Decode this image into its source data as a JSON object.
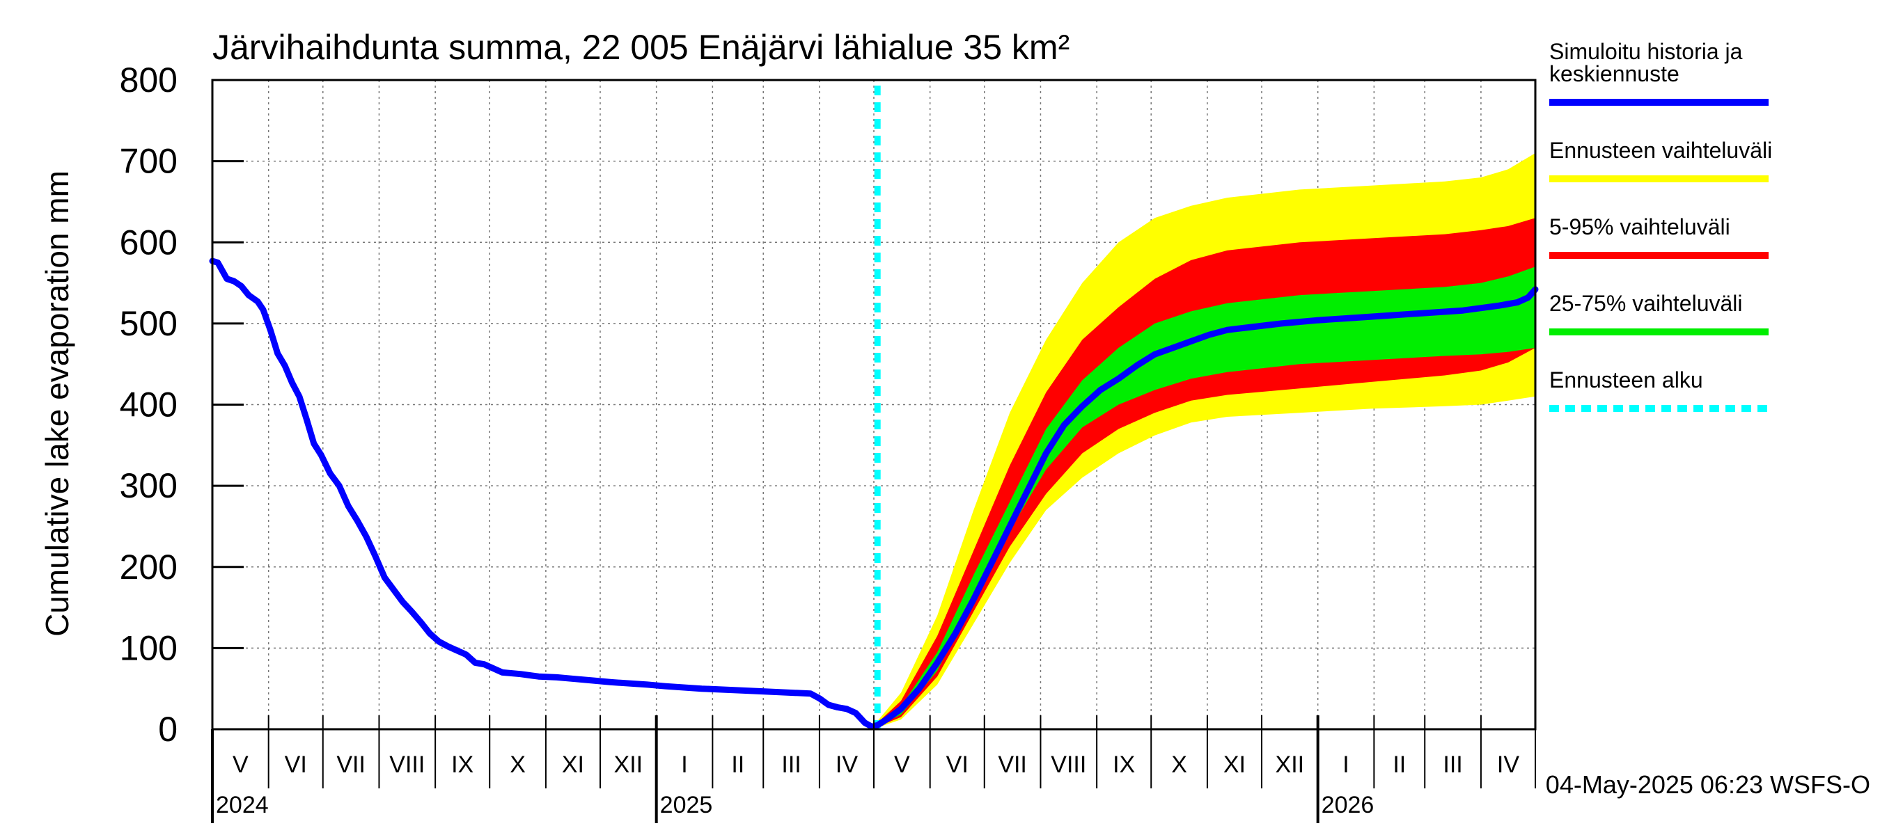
{
  "chart_data": {
    "type": "area",
    "title": "Järvihaihdunta summa, 22 005 Enäjärvi lähialue 35 km²",
    "ylabel": "Cumulative lake evaporation   mm",
    "xlabel": "",
    "ylim": [
      0,
      800
    ],
    "y_ticks": [
      0,
      100,
      200,
      300,
      400,
      500,
      600,
      700,
      800
    ],
    "x_range_days": [
      0,
      730
    ],
    "forecast_start_day": 367,
    "months": [
      {
        "label": "V",
        "start": 0
      },
      {
        "label": "VI",
        "start": 31
      },
      {
        "label": "VII",
        "start": 61
      },
      {
        "label": "VIII",
        "start": 92
      },
      {
        "label": "IX",
        "start": 123
      },
      {
        "label": "X",
        "start": 153
      },
      {
        "label": "XI",
        "start": 184
      },
      {
        "label": "XII",
        "start": 214
      },
      {
        "label": "I",
        "start": 245
      },
      {
        "label": "II",
        "start": 276
      },
      {
        "label": "III",
        "start": 304
      },
      {
        "label": "IV",
        "start": 335
      },
      {
        "label": "V",
        "start": 365
      },
      {
        "label": "VI",
        "start": 396
      },
      {
        "label": "VII",
        "start": 426
      },
      {
        "label": "VIII",
        "start": 457
      },
      {
        "label": "IX",
        "start": 488
      },
      {
        "label": "X",
        "start": 518
      },
      {
        "label": "XI",
        "start": 549
      },
      {
        "label": "XII",
        "start": 579
      },
      {
        "label": "I",
        "start": 610
      },
      {
        "label": "II",
        "start": 641
      },
      {
        "label": "III",
        "start": 669
      },
      {
        "label": "IV",
        "start": 700
      }
    ],
    "years": [
      {
        "label": "2024",
        "start": 0
      },
      {
        "label": "2025",
        "start": 245
      },
      {
        "label": "2026",
        "start": 610
      }
    ],
    "legend": {
      "placement": "right",
      "items": [
        {
          "label_lines": [
            "Simuloitu historia ja",
            "keskiennuste"
          ],
          "color": "#0000ff",
          "style": "line"
        },
        {
          "label_lines": [
            "Ennusteen vaihteluväli"
          ],
          "color": "#ffff00",
          "style": "line"
        },
        {
          "label_lines": [
            "5-95% vaihteluväli"
          ],
          "color": "#ff0000",
          "style": "line"
        },
        {
          "label_lines": [
            "25-75% vaihteluväli"
          ],
          "color": "#00ee00",
          "style": "line"
        },
        {
          "label_lines": [
            "Ennusteen alku"
          ],
          "color": "#00ffff",
          "style": "dashed"
        }
      ]
    },
    "series": [
      {
        "name": "Simuloitu historia ja keskiennuste",
        "color": "#0000ff",
        "x": [
          0,
          3,
          8,
          12,
          16,
          20,
          25,
          28,
          32,
          36,
          40,
          44,
          48,
          52,
          56,
          60,
          65,
          70,
          75,
          80,
          85,
          90,
          95,
          100,
          105,
          110,
          115,
          120,
          125,
          130,
          135,
          140,
          145,
          150,
          160,
          170,
          180,
          190,
          200,
          210,
          220,
          240,
          250,
          270,
          290,
          310,
          330,
          335,
          340,
          345,
          350,
          355,
          360,
          364,
          367,
          372,
          380,
          390,
          400,
          410,
          420,
          430,
          440,
          450,
          460,
          470,
          480,
          490,
          500,
          510,
          520,
          530,
          540,
          550,
          560,
          575,
          590,
          610,
          630,
          650,
          670,
          690,
          700,
          710,
          720,
          726,
          730
        ],
        "y": [
          577,
          575,
          555,
          552,
          546,
          535,
          527,
          517,
          492,
          463,
          448,
          427,
          410,
          382,
          352,
          338,
          315,
          300,
          275,
          257,
          237,
          213,
          187,
          172,
          157,
          145,
          132,
          118,
          108,
          102,
          97,
          92,
          82,
          80,
          70,
          68,
          65,
          64,
          62,
          60,
          58,
          55,
          53,
          50,
          48,
          46,
          44,
          38,
          30,
          27,
          25,
          20,
          8,
          3,
          5,
          12,
          25,
          50,
          82,
          118,
          160,
          205,
          250,
          295,
          340,
          375,
          398,
          418,
          432,
          448,
          462,
          470,
          478,
          486,
          492,
          496,
          500,
          504,
          507,
          510,
          513,
          516,
          519,
          522,
          526,
          532,
          542
        ]
      },
      {
        "name": "Ennusteen vaihteluväli",
        "color": "#ffff00",
        "x": [
          367,
          380,
          400,
          420,
          440,
          460,
          480,
          500,
          520,
          540,
          560,
          600,
          640,
          680,
          700,
          715,
          730
        ],
        "lower": [
          2,
          12,
          55,
          130,
          205,
          270,
          310,
          340,
          362,
          378,
          385,
          390,
          395,
          398,
          400,
          405,
          410
        ],
        "upper": [
          10,
          45,
          140,
          270,
          390,
          480,
          550,
          600,
          630,
          645,
          655,
          665,
          670,
          675,
          680,
          690,
          710
        ]
      },
      {
        "name": "5-95% vaihteluväli",
        "color": "#ff0000",
        "x": [
          367,
          380,
          400,
          420,
          440,
          460,
          480,
          500,
          520,
          540,
          560,
          600,
          640,
          680,
          700,
          715,
          730
        ],
        "lower": [
          3,
          15,
          65,
          145,
          225,
          290,
          340,
          370,
          390,
          405,
          412,
          420,
          428,
          436,
          442,
          452,
          470
        ],
        "upper": [
          8,
          35,
          115,
          220,
          325,
          415,
          480,
          520,
          555,
          578,
          590,
          600,
          605,
          610,
          615,
          620,
          630
        ]
      },
      {
        "name": "25-75% vaihteluväli",
        "color": "#00ee00",
        "x": [
          367,
          380,
          400,
          420,
          440,
          460,
          480,
          500,
          520,
          540,
          560,
          600,
          640,
          680,
          700,
          715,
          730
        ],
        "lower": [
          4,
          18,
          72,
          160,
          245,
          320,
          372,
          400,
          418,
          432,
          440,
          450,
          455,
          460,
          462,
          465,
          470
        ],
        "upper": [
          7,
          28,
          95,
          190,
          280,
          370,
          430,
          470,
          500,
          515,
          525,
          535,
          540,
          545,
          550,
          558,
          570
        ]
      }
    ],
    "footer_timestamp": "04-May-2025 06:23 WSFS-O"
  }
}
